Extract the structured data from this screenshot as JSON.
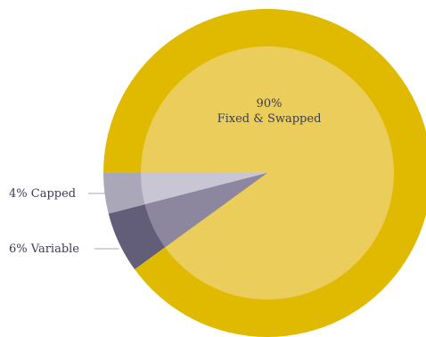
{
  "chart_data": {
    "type": "pie",
    "title": "",
    "slices": [
      {
        "label": "Fixed & Swapped",
        "value": 90,
        "display": "90%",
        "color_outer": "#dfba00",
        "color_inner": "#ebcd5c"
      },
      {
        "label": "Variable",
        "value": 6,
        "display": "6% Variable",
        "color_outer": "#625d78",
        "color_inner": "#8c879f"
      },
      {
        "label": "Capped",
        "value": 4,
        "display": "4% Capped",
        "color_outer": "#aaa7b9",
        "color_inner": "#c8c5d5"
      }
    ],
    "center_label": {
      "percent": "90%",
      "name": "Fixed & Swapped"
    },
    "start_angle_deg": 180,
    "direction": "counterclockwise",
    "legend": "none",
    "leader_line_color": "#aaa7b9"
  }
}
